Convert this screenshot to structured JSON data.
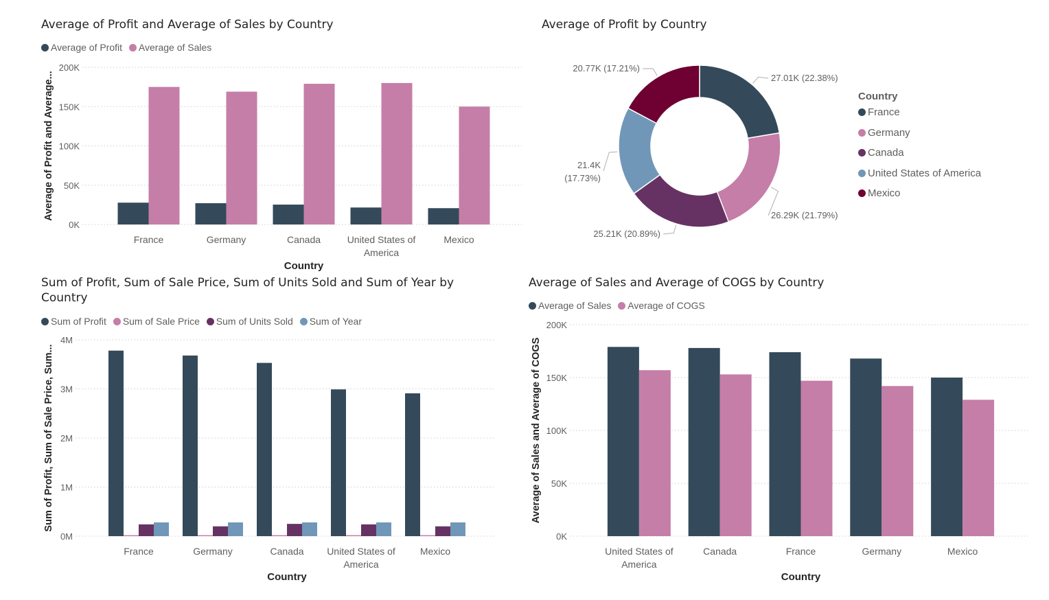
{
  "colors": {
    "dark": "#344a5a",
    "pink": "#c57ea7",
    "purple": "#663263",
    "blue": "#7197b8",
    "maroon": "#6e0032",
    "grid": "#cfcfcf",
    "tick": "#605e5c"
  },
  "chart_data": [
    {
      "type": "bar",
      "title": "Average of Profit and Average of Sales by Country",
      "xlabel": "Country",
      "ylabel": "Average of Profit and Average...",
      "categories": [
        "France",
        "Germany",
        "Canada",
        "United States of America",
        "Mexico"
      ],
      "category_lines": [
        [
          "France"
        ],
        [
          "Germany"
        ],
        [
          "Canada"
        ],
        [
          "United States of",
          "America"
        ],
        [
          "Mexico"
        ]
      ],
      "series": [
        {
          "name": "Average of Profit",
          "values": [
            27760,
            27090,
            25290,
            21600,
            20770
          ],
          "color": "#344a5a"
        },
        {
          "name": "Average of  Sales",
          "values": [
            175000,
            169000,
            179000,
            180000,
            150000
          ],
          "color": "#c57ea7"
        }
      ],
      "ylim": [
        0,
        200000
      ],
      "yticks": [
        "0K",
        "50K",
        "100K",
        "150K",
        "200K"
      ],
      "grid": true,
      "legend": "top-left"
    },
    {
      "type": "pie",
      "title": "Average of Profit by Country",
      "legend_title": "Country",
      "categories": [
        "France",
        "Germany",
        "Canada",
        "United States of America",
        "Mexico"
      ],
      "values": [
        27010,
        26290,
        25210,
        21400,
        20770
      ],
      "percent": [
        22.38,
        21.79,
        20.89,
        17.73,
        17.21
      ],
      "labels": [
        "27.01K (22.38%)",
        "26.29K (21.79%)",
        "25.21K (20.89%)",
        "21.4K (17.73%)",
        "20.77K (17.21%)"
      ],
      "colors": [
        "#344a5a",
        "#c57ea7",
        "#663263",
        "#7197b8",
        "#6e0032"
      ],
      "donut": true,
      "legend": "right"
    },
    {
      "type": "bar",
      "title": "Sum of Profit, Sum of Sale Price, Sum of Units Sold and Sum of Year by Country",
      "title_lines": [
        "Sum of Profit, Sum of Sale Price, Sum of Units Sold and Sum of Year by",
        "Country"
      ],
      "xlabel": "Country",
      "ylabel": "Sum of Profit, Sum of Sale Price, Sum...",
      "categories": [
        "France",
        "Germany",
        "Canada",
        "United States of America",
        "Mexico"
      ],
      "category_lines": [
        [
          "France"
        ],
        [
          "Germany"
        ],
        [
          "Canada"
        ],
        [
          "United States of",
          "America"
        ],
        [
          "Mexico"
        ]
      ],
      "series": [
        {
          "name": "Sum of Profit",
          "values": [
            3780000,
            3680000,
            3530000,
            2990000,
            2910000
          ],
          "color": "#344a5a"
        },
        {
          "name": "Sum of Sale Price",
          "values": [
            20000,
            20000,
            20000,
            20000,
            20000
          ],
          "color": "#c57ea7"
        },
        {
          "name": "Sum of Units Sold",
          "values": [
            240000,
            200000,
            250000,
            240000,
            200000
          ],
          "color": "#663263"
        },
        {
          "name": "Sum of Year",
          "values": [
            280000,
            280000,
            280000,
            280000,
            280000
          ],
          "color": "#7197b8"
        }
      ],
      "ylim": [
        0,
        4000000
      ],
      "yticks": [
        "0M",
        "1M",
        "2M",
        "3M",
        "4M"
      ],
      "grid": true,
      "legend": "top-left"
    },
    {
      "type": "bar",
      "title": "Average of Sales and Average of COGS by Country",
      "xlabel": "Country",
      "ylabel": "Average of Sales and Average of COGS",
      "categories": [
        "United States of America",
        "Canada",
        "France",
        "Germany",
        "Mexico"
      ],
      "category_lines": [
        [
          "United States of",
          "America"
        ],
        [
          "Canada"
        ],
        [
          "France"
        ],
        [
          "Germany"
        ],
        [
          "Mexico"
        ]
      ],
      "series": [
        {
          "name": "Average of Sales",
          "values": [
            179000,
            178000,
            174000,
            168000,
            150000
          ],
          "color": "#344a5a"
        },
        {
          "name": "Average of COGS",
          "values": [
            157000,
            153000,
            147000,
            142000,
            129000
          ],
          "color": "#c57ea7"
        }
      ],
      "ylim": [
        0,
        200000
      ],
      "yticks": [
        "0K",
        "50K",
        "100K",
        "150K",
        "200K"
      ],
      "grid": true,
      "legend": "top-left"
    }
  ]
}
